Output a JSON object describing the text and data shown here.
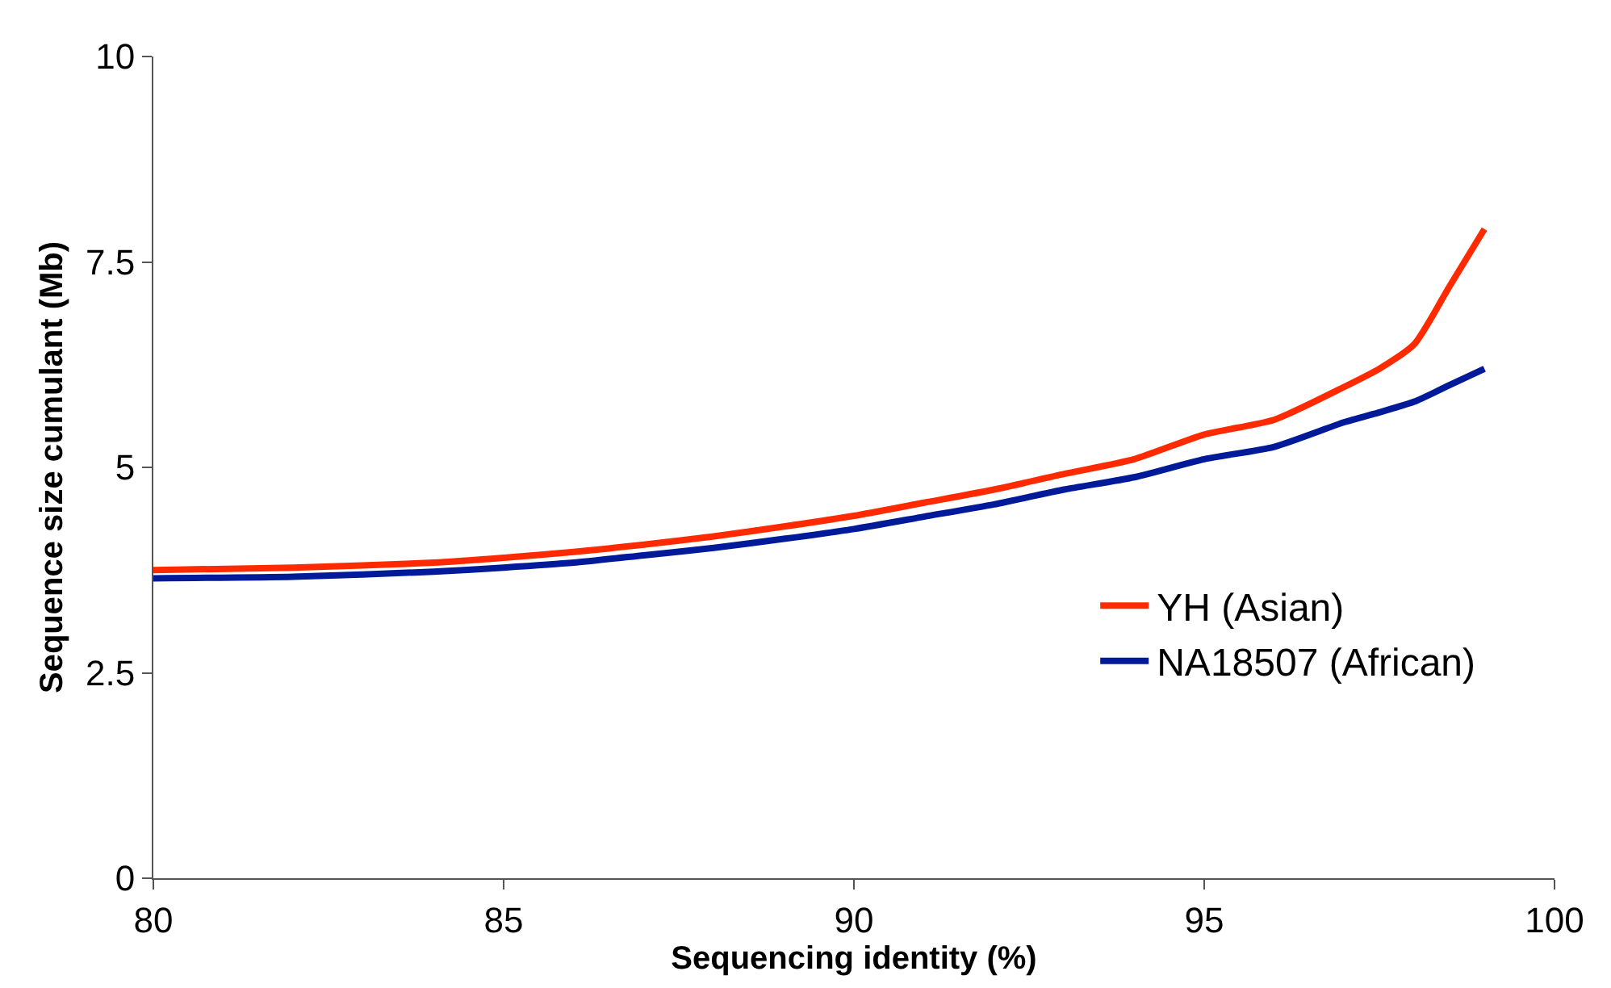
{
  "chart_data": {
    "type": "line",
    "xlabel": "Sequencing identity (%)",
    "ylabel": "Sequence size cumulant (Mb)",
    "x": [
      80,
      82,
      84,
      85,
      86,
      87,
      88,
      89,
      90,
      91,
      92,
      93,
      94,
      95,
      96,
      97,
      97.5,
      98,
      98.5,
      99
    ],
    "series": [
      {
        "name": "YH (Asian)",
        "color": "#ff2a00",
        "values": [
          3.75,
          3.78,
          3.84,
          3.9,
          3.97,
          4.06,
          4.16,
          4.28,
          4.41,
          4.57,
          4.73,
          4.92,
          5.1,
          5.4,
          5.58,
          5.98,
          6.2,
          6.5,
          7.2,
          7.9
        ]
      },
      {
        "name": "NA18507 (African)",
        "color": "#001a99",
        "values": [
          3.65,
          3.67,
          3.73,
          3.78,
          3.84,
          3.93,
          4.02,
          4.13,
          4.25,
          4.4,
          4.55,
          4.73,
          4.88,
          5.1,
          5.25,
          5.55,
          5.67,
          5.8,
          6.0,
          6.2
        ]
      }
    ],
    "xlim": [
      80,
      100
    ],
    "xticks": [
      80,
      85,
      90,
      95,
      100
    ],
    "ylim": [
      0,
      10
    ],
    "yticks": [
      0,
      2.5,
      5,
      7.5,
      10
    ],
    "legend": "bottom right",
    "marker": "none",
    "line_style": "solid"
  }
}
